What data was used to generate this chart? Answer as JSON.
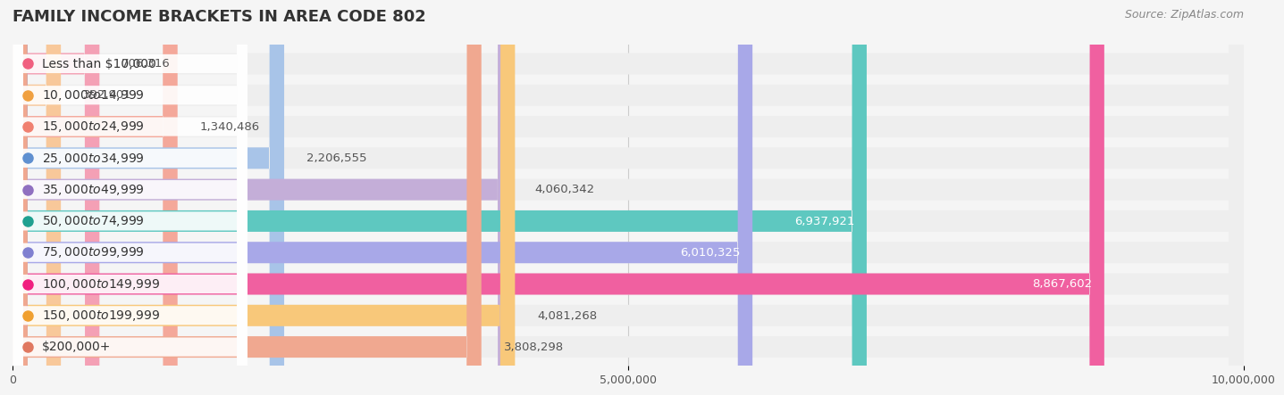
{
  "title": "FAMILY INCOME BRACKETS IN AREA CODE 802",
  "source": "Source: ZipAtlas.com",
  "categories": [
    "Less than $10,000",
    "$10,000 to $14,999",
    "$15,000 to $24,999",
    "$25,000 to $34,999",
    "$35,000 to $49,999",
    "$50,000 to $74,999",
    "$75,000 to $99,999",
    "$100,000 to $149,999",
    "$150,000 to $199,999",
    "$200,000+"
  ],
  "values": [
    706316,
    392901,
    1340486,
    2206555,
    4060342,
    6937921,
    6010325,
    8867602,
    4081268,
    3808298
  ],
  "bar_colors": [
    "#F4A0B5",
    "#F8C89A",
    "#F4A89A",
    "#A8C4E8",
    "#C4AED8",
    "#5EC8C0",
    "#A8A8E8",
    "#F060A0",
    "#F8C87A",
    "#F0A890"
  ],
  "dot_colors": [
    "#F06080",
    "#F0A040",
    "#F08070",
    "#6090D0",
    "#9070C0",
    "#20A090",
    "#8080D0",
    "#F02080",
    "#F0A030",
    "#E07860"
  ],
  "label_colors": [
    "#555555",
    "#555555",
    "#555555",
    "#555555",
    "#555555",
    "#ffffff",
    "#ffffff",
    "#ffffff",
    "#555555",
    "#555555"
  ],
  "xlim": [
    0,
    10000000
  ],
  "xticks": [
    0,
    5000000,
    10000000
  ],
  "xtick_labels": [
    "0",
    "5,000,000",
    "10,000,000"
  ],
  "background_color": "#f5f5f5",
  "bar_background_color": "#eeeeee",
  "title_fontsize": 13,
  "source_fontsize": 9,
  "label_fontsize": 10,
  "value_fontsize": 9.5,
  "bar_height": 0.68
}
